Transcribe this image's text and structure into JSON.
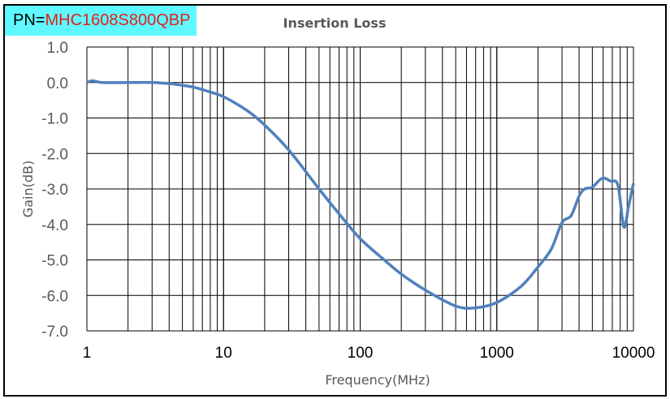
{
  "label": {
    "prefix": "PN=",
    "part_number": "MHC1608S800QBP"
  },
  "chart_data": {
    "type": "line",
    "title": "Insertion Loss",
    "xlabel": "Frequency(MHz)",
    "ylabel": "Gain(dB)",
    "xscale": "log",
    "xlim": [
      1,
      10000
    ],
    "ylim": [
      -7,
      1
    ],
    "grid": true,
    "xticks": [
      "1",
      "10",
      "100",
      "1000",
      "10000"
    ],
    "yticks": [
      "1.0",
      "0.0",
      "-1.0",
      "-2.0",
      "-3.0",
      "-4.0",
      "-5.0",
      "-6.0",
      "-7.0"
    ],
    "color": "#4f81bd",
    "series": [
      {
        "name": "Insertion Loss",
        "x": [
          1,
          1.1,
          1.3,
          2,
          3,
          4,
          5,
          6,
          7,
          8,
          10,
          15,
          20,
          30,
          50,
          70,
          100,
          150,
          200,
          300,
          500,
          700,
          1000,
          1500,
          2000,
          2500,
          3000,
          3500,
          4000,
          4400,
          5000,
          5900,
          6800,
          7700,
          8500,
          9200,
          10000
        ],
        "y": [
          0,
          0.05,
          0,
          0,
          0,
          -0.03,
          -0.08,
          -0.13,
          -0.2,
          -0.27,
          -0.4,
          -0.8,
          -1.2,
          -1.9,
          -3.0,
          -3.7,
          -4.4,
          -5.0,
          -5.4,
          -5.85,
          -6.3,
          -6.35,
          -6.2,
          -5.75,
          -5.2,
          -4.7,
          -3.95,
          -3.75,
          -3.2,
          -3.0,
          -2.95,
          -2.7,
          -2.78,
          -2.9,
          -4.07,
          -3.5,
          -2.84
        ]
      }
    ]
  }
}
